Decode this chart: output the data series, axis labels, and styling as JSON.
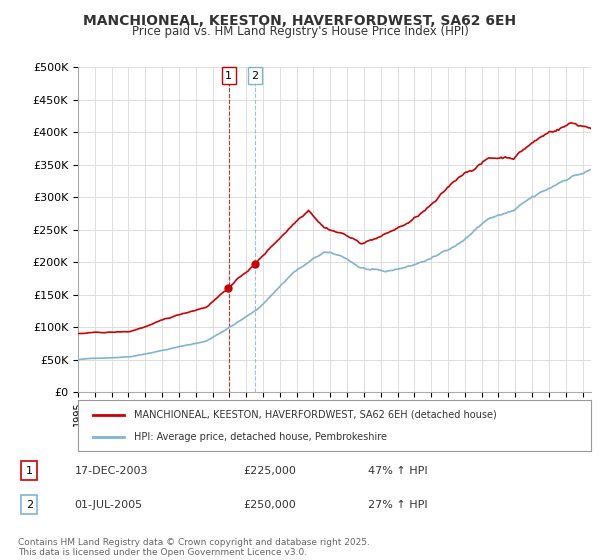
{
  "title1": "MANCHIONEAL, KEESTON, HAVERFORDWEST, SA62 6EH",
  "title2": "Price paid vs. HM Land Registry's House Price Index (HPI)",
  "ylim": [
    0,
    500000
  ],
  "yticks": [
    0,
    50000,
    100000,
    150000,
    200000,
    250000,
    300000,
    350000,
    400000,
    450000,
    500000
  ],
  "ytick_labels": [
    "£0",
    "£50K",
    "£100K",
    "£150K",
    "£200K",
    "£250K",
    "£300K",
    "£350K",
    "£400K",
    "£450K",
    "£500K"
  ],
  "line1_color": "#cc0000",
  "line2_color": "#7fb4d4",
  "vline1_color": "#cc0000",
  "vline2_color": "#7fb4d4",
  "transaction1_x": 2003.96,
  "transaction2_x": 2005.5,
  "legend1_text": "MANCHIONEAL, KEESTON, HAVERFORDWEST, SA62 6EH (detached house)",
  "legend2_text": "HPI: Average price, detached house, Pembrokeshire",
  "footnote": "Contains HM Land Registry data © Crown copyright and database right 2025.\nThis data is licensed under the Open Government Licence v3.0.",
  "bg_color": "#ffffff",
  "table_row1": [
    "1",
    "17-DEC-2003",
    "£225,000",
    "47% ↑ HPI"
  ],
  "table_row2": [
    "2",
    "01-JUL-2005",
    "£250,000",
    "27% ↑ HPI"
  ],
  "hpi_t": [
    0.0,
    0.1,
    0.25,
    0.35,
    0.42,
    0.48,
    0.52,
    0.55,
    0.6,
    0.65,
    0.7,
    0.75,
    0.8,
    0.85,
    0.88,
    0.92,
    0.96,
    1.0
  ],
  "hpi_v": [
    50000,
    55000,
    80000,
    130000,
    190000,
    220000,
    210000,
    195000,
    185000,
    195000,
    210000,
    235000,
    270000,
    280000,
    295000,
    310000,
    330000,
    340000
  ],
  "prop_t": [
    0.0,
    0.1,
    0.25,
    0.35,
    0.42,
    0.45,
    0.48,
    0.52,
    0.55,
    0.6,
    0.65,
    0.7,
    0.75,
    0.8,
    0.85,
    0.88,
    0.92,
    0.96,
    1.0
  ],
  "prop_v": [
    90000,
    92000,
    130000,
    200000,
    260000,
    285000,
    260000,
    250000,
    235000,
    250000,
    270000,
    300000,
    340000,
    365000,
    370000,
    390000,
    410000,
    425000,
    420000
  ]
}
